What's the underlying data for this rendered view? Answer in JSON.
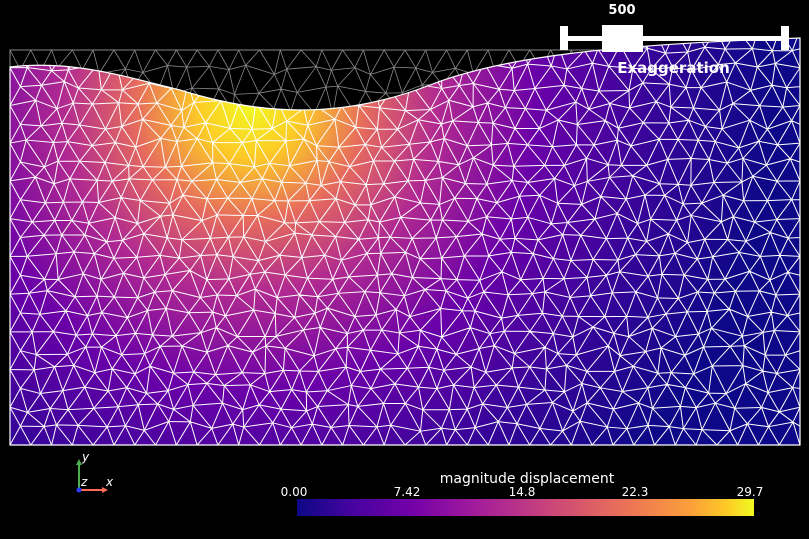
{
  "slider": {
    "value": "500",
    "title": "Exaggeration",
    "position_fraction": 0.28
  },
  "colorbar": {
    "title": "magnitude displacement",
    "ticks": [
      "0.00",
      "7.42",
      "14.8",
      "22.3",
      "29.7"
    ],
    "colormap": "plasma"
  },
  "axes": {
    "x_label": "x",
    "y_label": "y",
    "z_label": "z"
  },
  "colors": {
    "background": "#000000",
    "mesh_lines": "#ffffff",
    "undeformed_mesh": "#888888"
  }
}
